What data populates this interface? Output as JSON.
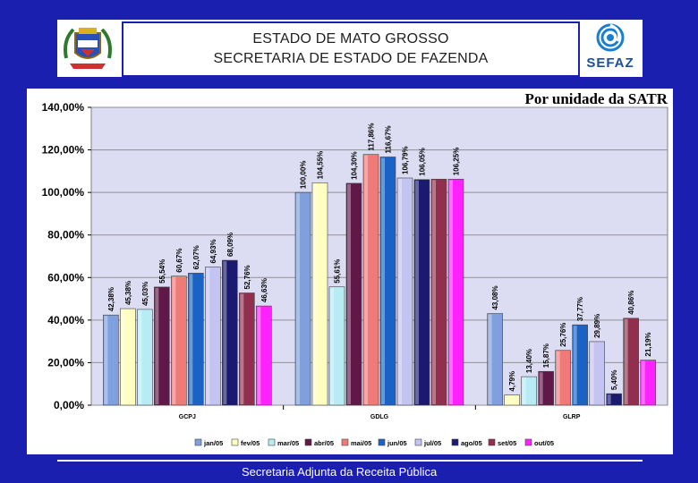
{
  "header": {
    "line1": "ESTADO DE MATO GROSSO",
    "line2": "SECRETARIA DE ESTADO DE FAZENDA",
    "logo_text": "SEFAZ"
  },
  "chart_heading": "Por unidade da SATR",
  "footer": "Secretaria Adjunta da Receita Pública",
  "colors": {
    "background": "#1b1fb0",
    "plot_background": "#dcdcf2",
    "series": [
      "#7f9fde",
      "#fefec0",
      "#b8ecf4",
      "#601848",
      "#f07a78",
      "#1a63c4",
      "#c4c4f2",
      "#1a1a70",
      "#90304e",
      "#ff22ff"
    ]
  },
  "chart_data": {
    "type": "bar",
    "title": "",
    "xlabel": "",
    "ylabel": "",
    "ylim": [
      0,
      140
    ],
    "y_ticks": [
      "0,00%",
      "20,00%",
      "40,00%",
      "60,00%",
      "80,00%",
      "100,00%",
      "120,00%",
      "140,00%"
    ],
    "grid": true,
    "legend_position": "bottom",
    "categories": [
      "GCPJ",
      "GDLG",
      "GLRP"
    ],
    "series": [
      {
        "name": "jan/05",
        "values": [
          42.38,
          100.0,
          43.08
        ],
        "labels": [
          "42,38%",
          "100,00%",
          "43,08%"
        ]
      },
      {
        "name": "fev/05",
        "values": [
          45.38,
          104.55,
          4.79
        ],
        "labels": [
          "45,38%",
          "104,55%",
          "4,79%"
        ]
      },
      {
        "name": "mar/05",
        "values": [
          45.03,
          55.61,
          13.4
        ],
        "labels": [
          "45,03%",
          "55,61%",
          "13,40%"
        ]
      },
      {
        "name": "abr/05",
        "values": [
          55.54,
          104.3,
          15.87
        ],
        "labels": [
          "55,54%",
          "104,30%",
          "15,87%"
        ]
      },
      {
        "name": "mai/05",
        "values": [
          60.67,
          117.86,
          25.76
        ],
        "labels": [
          "60,67%",
          "117,86%",
          "25,76%"
        ]
      },
      {
        "name": "jun/05",
        "values": [
          62.07,
          116.67,
          37.77
        ],
        "labels": [
          "62,07%",
          "116,67%",
          "37,77%"
        ]
      },
      {
        "name": "jul/05",
        "values": [
          64.93,
          106.79,
          29.89
        ],
        "labels": [
          "64,93%",
          "106,79%",
          "29,89%"
        ]
      },
      {
        "name": "ago/05",
        "values": [
          68.09,
          106.05,
          5.4
        ],
        "labels": [
          "68,09%",
          "106,05%",
          "5,40%"
        ]
      },
      {
        "name": "set/05",
        "values": [
          52.76,
          106.25,
          40.86
        ],
        "labels": [
          "52,76%",
          "",
          "40,86%"
        ]
      },
      {
        "name": "out/05",
        "values": [
          46.63,
          106.25,
          21.19
        ],
        "labels": [
          "46,63%",
          "106,25%",
          "21,19%"
        ]
      }
    ]
  }
}
